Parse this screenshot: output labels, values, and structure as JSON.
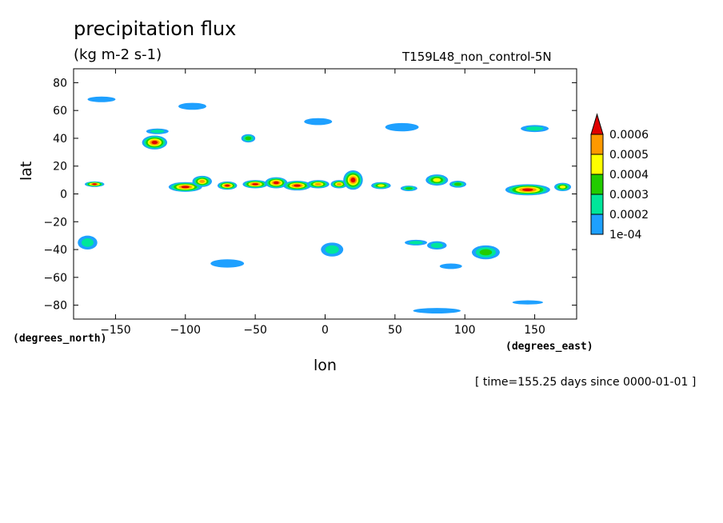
{
  "chart_data": {
    "type": "heatmap",
    "title": "precipitation flux",
    "units": "(kg m-2 s-1)",
    "run_label": "T159L48_non_control-5N",
    "xlabel": "lon",
    "ylabel": "lat",
    "x_units_label": "(degrees_east)",
    "y_units_label": "(degrees_north)",
    "time_note": "[ time=155.25 days since 0000-01-01 ]",
    "xlim": [
      -180,
      180
    ],
    "ylim": [
      -90,
      90
    ],
    "x_ticks": [
      -150,
      -100,
      -50,
      0,
      50,
      100,
      150
    ],
    "y_ticks": [
      80,
      60,
      40,
      20,
      0,
      -20,
      -40,
      -60,
      -80
    ],
    "colorbar": {
      "levels": [
        0.0001,
        0.0002,
        0.0003,
        0.0004,
        0.0005,
        0.0006
      ],
      "labels": [
        "1e-04",
        "0.0002",
        "0.0003",
        "0.0004",
        "0.0005",
        "0.0006"
      ],
      "colors": [
        "#1ea0ff",
        "#00e69a",
        "#22cc00",
        "#ffff00",
        "#ff9900",
        "#e00000"
      ],
      "extend": "max"
    },
    "features": [
      {
        "lon": -165,
        "lat": 7,
        "level": 6,
        "w": 14,
        "h": 4
      },
      {
        "lon": -100,
        "lat": 5,
        "level": 6,
        "w": 24,
        "h": 7
      },
      {
        "lon": -88,
        "lat": 9,
        "level": 5,
        "w": 14,
        "h": 8
      },
      {
        "lon": -70,
        "lat": 6,
        "level": 6,
        "w": 14,
        "h": 6
      },
      {
        "lon": -50,
        "lat": 7,
        "level": 6,
        "w": 18,
        "h": 6
      },
      {
        "lon": -35,
        "lat": 8,
        "level": 6,
        "w": 16,
        "h": 8
      },
      {
        "lon": -20,
        "lat": 6,
        "level": 6,
        "w": 20,
        "h": 7
      },
      {
        "lon": -5,
        "lat": 7,
        "level": 5,
        "w": 16,
        "h": 6
      },
      {
        "lon": 10,
        "lat": 7,
        "level": 5,
        "w": 12,
        "h": 6
      },
      {
        "lon": 20,
        "lat": 10,
        "level": 6,
        "w": 14,
        "h": 14
      },
      {
        "lon": 40,
        "lat": 6,
        "level": 4,
        "w": 14,
        "h": 5
      },
      {
        "lon": 60,
        "lat": 4,
        "level": 3,
        "w": 12,
        "h": 4
      },
      {
        "lon": 80,
        "lat": 10,
        "level": 4,
        "w": 16,
        "h": 8
      },
      {
        "lon": 95,
        "lat": 7,
        "level": 3,
        "w": 12,
        "h": 5
      },
      {
        "lon": 145,
        "lat": 3,
        "level": 6,
        "w": 32,
        "h": 8
      },
      {
        "lon": 170,
        "lat": 5,
        "level": 4,
        "w": 12,
        "h": 6
      },
      {
        "lon": -122,
        "lat": 37,
        "level": 6,
        "w": 18,
        "h": 10
      },
      {
        "lon": -120,
        "lat": 45,
        "level": 2,
        "w": 16,
        "h": 4
      },
      {
        "lon": -55,
        "lat": 40,
        "level": 3,
        "w": 10,
        "h": 6
      },
      {
        "lon": -160,
        "lat": 68,
        "level": 1,
        "w": 20,
        "h": 4
      },
      {
        "lon": -95,
        "lat": 63,
        "level": 1,
        "w": 20,
        "h": 5
      },
      {
        "lon": -5,
        "lat": 52,
        "level": 1,
        "w": 20,
        "h": 5
      },
      {
        "lon": 55,
        "lat": 48,
        "level": 1,
        "w": 24,
        "h": 6
      },
      {
        "lon": 150,
        "lat": 47,
        "level": 2,
        "w": 20,
        "h": 5
      },
      {
        "lon": -170,
        "lat": -35,
        "level": 2,
        "w": 14,
        "h": 10
      },
      {
        "lon": -70,
        "lat": -50,
        "level": 1,
        "w": 24,
        "h": 6
      },
      {
        "lon": 5,
        "lat": -40,
        "level": 2,
        "w": 16,
        "h": 10
      },
      {
        "lon": 65,
        "lat": -35,
        "level": 2,
        "w": 16,
        "h": 4
      },
      {
        "lon": 80,
        "lat": -37,
        "level": 2,
        "w": 14,
        "h": 6
      },
      {
        "lon": 115,
        "lat": -42,
        "level": 3,
        "w": 20,
        "h": 10
      },
      {
        "lon": 90,
        "lat": -52,
        "level": 1,
        "w": 16,
        "h": 4
      },
      {
        "lon": 80,
        "lat": -84,
        "level": 1,
        "w": 34,
        "h": 4
      },
      {
        "lon": 145,
        "lat": -78,
        "level": 1,
        "w": 22,
        "h": 3
      }
    ]
  }
}
